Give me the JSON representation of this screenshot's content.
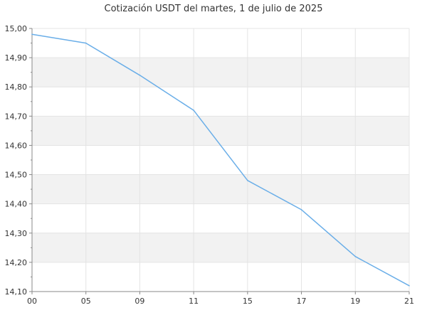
{
  "chart_data": {
    "type": "line",
    "title": "Cotización USDT del martes, 1 de julio de 2025",
    "xlabel": "",
    "ylabel": "",
    "x": [
      "00",
      "05",
      "09",
      "11",
      "15",
      "17",
      "19",
      "21"
    ],
    "series": [
      {
        "values": [
          14.98,
          14.95,
          14.84,
          14.72,
          14.48,
          14.38,
          14.22,
          14.12
        ]
      }
    ],
    "ylim": [
      14.1,
      15.0
    ],
    "yticks": [
      "15,00",
      "14,90",
      "14,80",
      "14,70",
      "14,60",
      "14,50",
      "14,40",
      "14,30",
      "14,20",
      "14,10"
    ],
    "grid": true,
    "legend": "none",
    "colors": {
      "line": "#6aaee8",
      "band": "#f2f2f2",
      "grid": "#e4e4e4",
      "axis": "#888888"
    }
  }
}
